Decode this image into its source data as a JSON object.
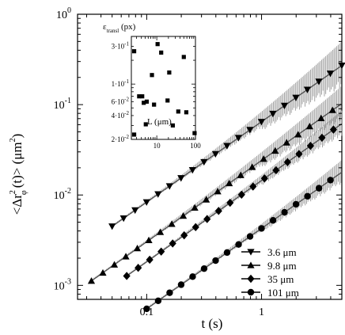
{
  "chart_data": {
    "type": "scatter",
    "xlabel": "t (s)",
    "ylabel_parts": {
      "pre": "<Δr",
      "sub": "φ",
      "sup": "2",
      "post": "(t)> (μm",
      "sup2": "2",
      "close": ")"
    },
    "x_scale": "log",
    "y_scale": "log",
    "xlim": [
      0.025,
      5
    ],
    "ylim": [
      0.0007,
      1
    ],
    "x_ticks": [
      {
        "value": 0.1,
        "label": "0.1"
      },
      {
        "value": 1,
        "label": "1"
      }
    ],
    "y_ticks": [
      {
        "value": 0.001,
        "base": "10",
        "exp": "-3"
      },
      {
        "value": 0.01,
        "base": "10",
        "exp": "-2"
      },
      {
        "value": 0.1,
        "base": "10",
        "exp": "-1"
      },
      {
        "value": 1,
        "base": "10",
        "exp": "0"
      }
    ],
    "legend": {
      "position": "bottom-right"
    },
    "series": [
      {
        "name": "3.6 μm",
        "marker": "triangle-down",
        "t0": 0.05,
        "y0": 0.0045,
        "slope": 0.89,
        "n_err": 0.25
      },
      {
        "name": "9.8 μm",
        "marker": "triangle-up",
        "t0": 0.033,
        "y0": 0.00112,
        "slope": 0.9,
        "n_err": 0.18
      },
      {
        "name": "35 μm",
        "marker": "diamond",
        "t0": 0.067,
        "y0": 0.00127,
        "slope": 0.9,
        "n_err": 0.13
      },
      {
        "name": "101 μm",
        "marker": "circle",
        "t0": 0.1,
        "y0": 0.00055,
        "slope": 0.89,
        "n_err": 0.12
      }
    ],
    "inset": {
      "type": "scatter",
      "title_parts": {
        "pre": "ε",
        "sub": "transl",
        "post": " (px)"
      },
      "xlabel": "L (μm)",
      "x_scale": "log",
      "y_scale": "log",
      "xlim": [
        2.2,
        100
      ],
      "ylim": [
        0.02,
        0.4
      ],
      "x_ticks": [
        {
          "value": 10,
          "label": "10"
        },
        {
          "value": 100,
          "label": "100"
        }
      ],
      "y_ticks": [
        {
          "value": 0.02,
          "mant": "2",
          "exp": "-2"
        },
        {
          "value": 0.04,
          "mant": "4",
          "exp": "-2"
        },
        {
          "value": 0.06,
          "mant": "6",
          "exp": "-2"
        },
        {
          "value": 0.1,
          "mant": "1",
          "exp": "-1"
        },
        {
          "value": 0.3,
          "mant": "3",
          "exp": "-1"
        }
      ],
      "points": [
        [
          2.6,
          0.26
        ],
        [
          2.6,
          0.023
        ],
        [
          3.5,
          0.07
        ],
        [
          4.2,
          0.07
        ],
        [
          4.6,
          0.058
        ],
        [
          5.2,
          0.031
        ],
        [
          5.5,
          0.06
        ],
        [
          7.5,
          0.13
        ],
        [
          8.5,
          0.055
        ],
        [
          10.5,
          0.32
        ],
        [
          13,
          0.25
        ],
        [
          19,
          0.062
        ],
        [
          21,
          0.14
        ],
        [
          26,
          0.03
        ],
        [
          36,
          0.045
        ],
        [
          50,
          0.22
        ],
        [
          58,
          0.044
        ],
        [
          95,
          0.024
        ]
      ]
    }
  }
}
